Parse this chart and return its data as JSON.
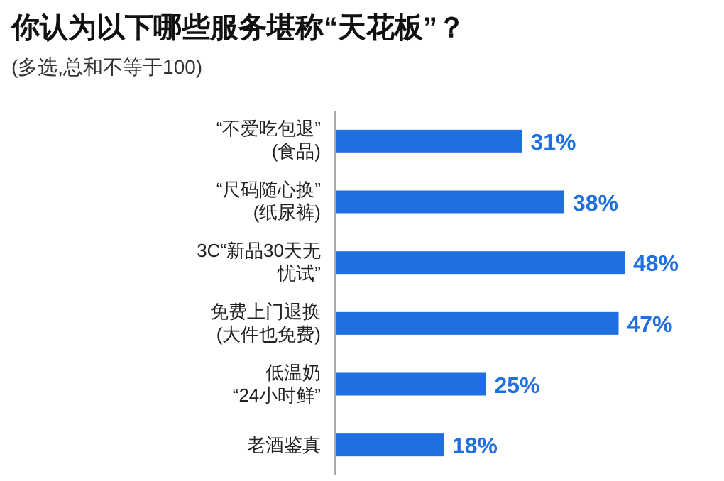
{
  "chart_data": {
    "type": "bar",
    "orientation": "horizontal",
    "title": "你认为以下哪些服务堪称“天花板”？",
    "subtitle": "(多选,总和不等于100)",
    "categories": [
      "“不爱吃包退”\n(食品)",
      "“尺码随心换”\n(纸尿裤)",
      "3C“新品30天无忧试”",
      "免费上门退换\n(大件也免费)",
      "低温奶\n“24小时鲜”",
      "老酒鉴真"
    ],
    "values": [
      31,
      38,
      48,
      47,
      25,
      18
    ],
    "value_labels": [
      "31%",
      "38%",
      "48%",
      "47%",
      "25%",
      "18%"
    ],
    "color": "#1f6fe0"
  }
}
